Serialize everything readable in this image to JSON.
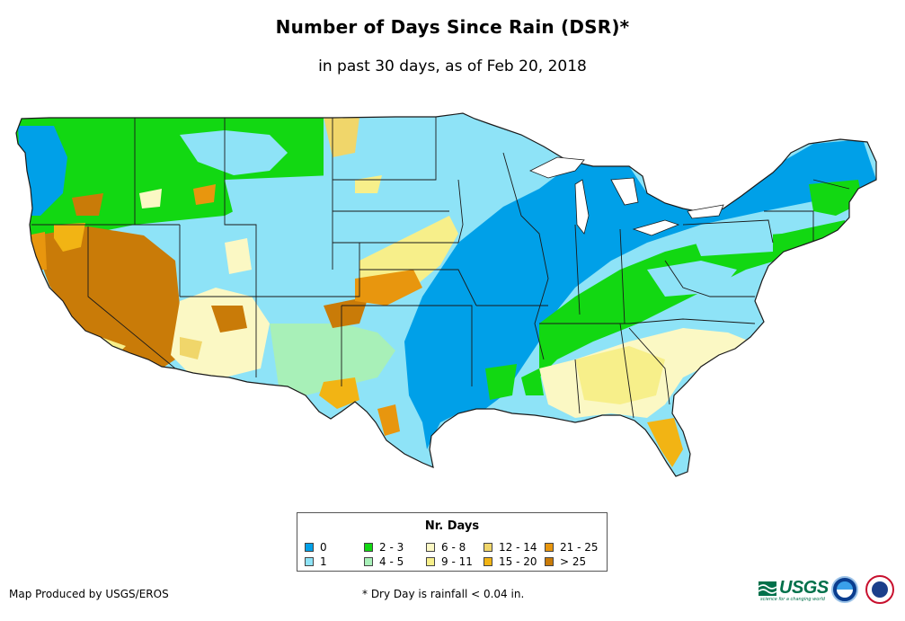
{
  "header": {
    "title": "Number of Days Since Rain (DSR)*",
    "subtitle": "in past 30 days, as of Feb 20, 2018"
  },
  "legend": {
    "title": "Nr. Days",
    "items": [
      {
        "label": "0",
        "color": "#00a0e8"
      },
      {
        "label": "1",
        "color": "#8ee3f7"
      },
      {
        "label": "2 - 3",
        "color": "#12d812"
      },
      {
        "label": "4 - 5",
        "color": "#a8f0b8"
      },
      {
        "label": "6 - 8",
        "color": "#fbf8c4"
      },
      {
        "label": "9 - 11",
        "color": "#f7ef8a"
      },
      {
        "label": "12 - 14",
        "color": "#f0d66a"
      },
      {
        "label": "15 - 20",
        "color": "#f2b414"
      },
      {
        "label": "21 - 25",
        "color": "#e8960e"
      },
      {
        "label": "> 25",
        "color": "#c97b08"
      }
    ]
  },
  "footer": {
    "credit": "Map Produced by USGS/EROS",
    "footnote": "* Dry Day is rainfall < 0.04 in.",
    "usgs_logo_text": "USGS",
    "usgs_tagline": "science for a changing world",
    "logos": [
      "usgs-logo",
      "noaa-logo",
      "nws-logo"
    ]
  },
  "colors": {
    "state_border": "#1a1a1a",
    "background": "#ffffff"
  }
}
